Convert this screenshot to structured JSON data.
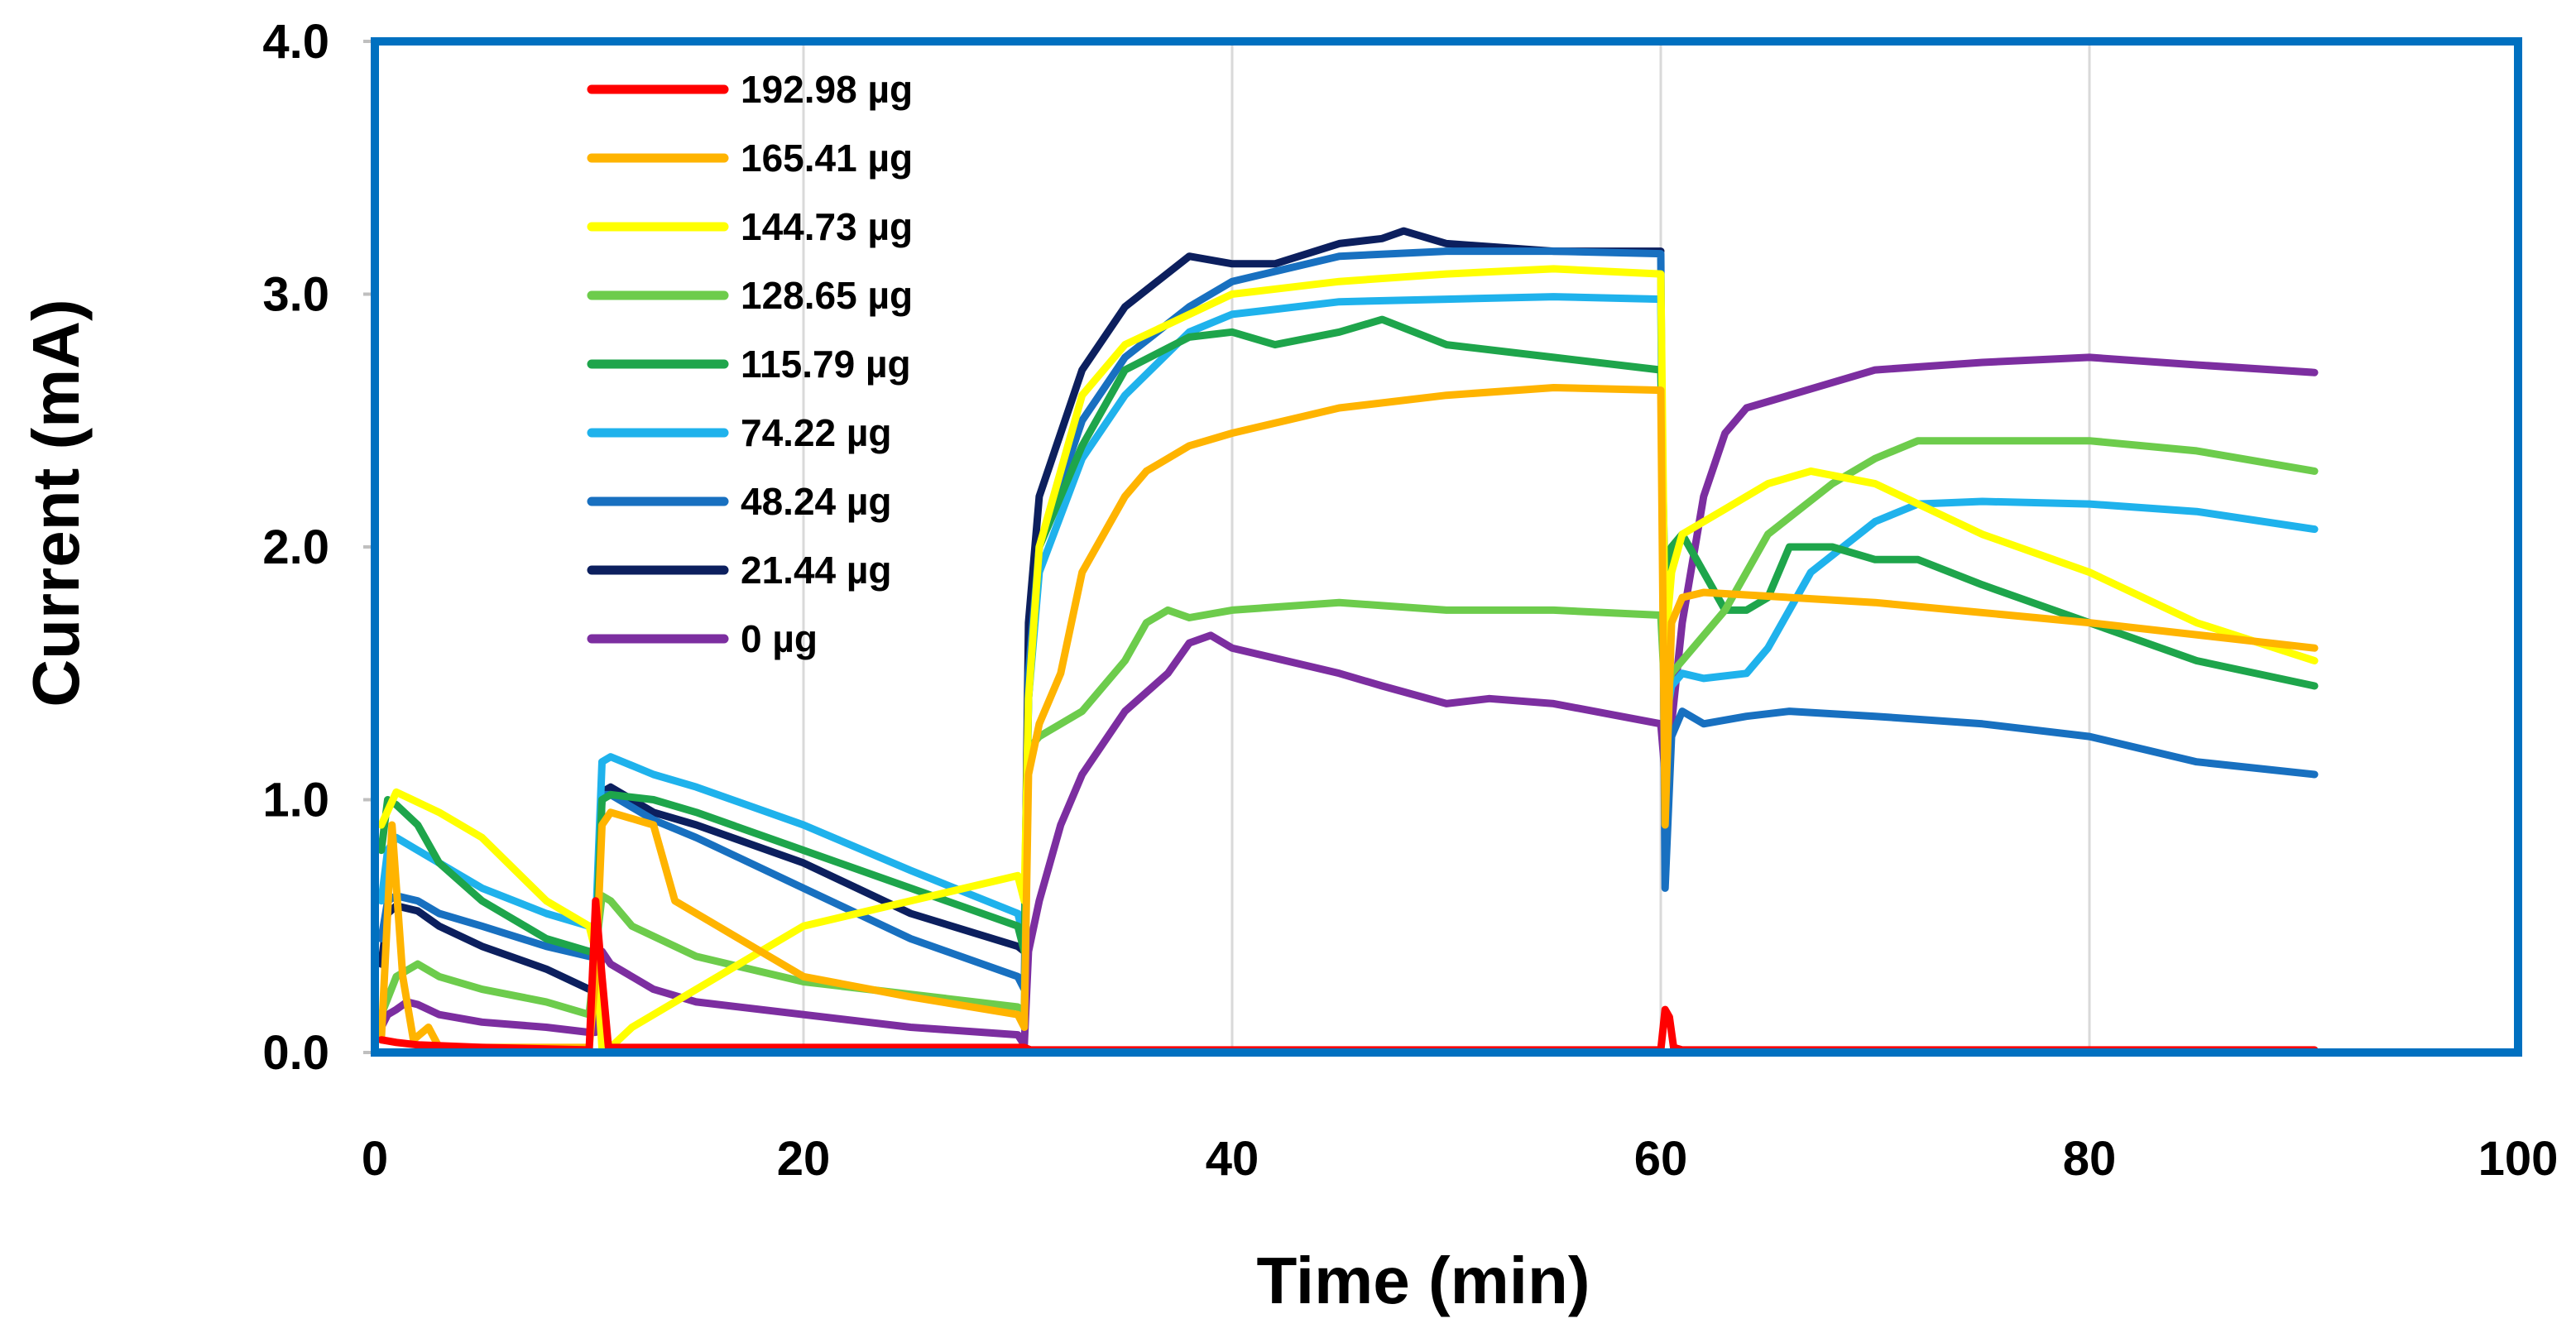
{
  "chart_data": {
    "type": "line",
    "title": "",
    "xlabel": "Time (min)",
    "ylabel": "Current (mA)",
    "xlim": [
      0,
      100
    ],
    "ylim": [
      0,
      4
    ],
    "xticks": [
      "0",
      "20",
      "40",
      "60",
      "80",
      "100"
    ],
    "yticks": [
      "0.0",
      "1.0",
      "2.0",
      "3.0",
      "4.0"
    ],
    "grid": "vertical",
    "legend_position": "top-left",
    "series": [
      {
        "name": "192.98 µg",
        "color": "#ff0000",
        "x": [
          0.3,
          1,
          2,
          5,
          10,
          10.3,
          10.6,
          10.9,
          15,
          20,
          25,
          30,
          30.3,
          30.6,
          31,
          40,
          50,
          60,
          60.2,
          60.4,
          60.6,
          61,
          70,
          80,
          90.5
        ],
        "y": [
          0.05,
          0.04,
          0.03,
          0.02,
          0.01,
          0.6,
          0.3,
          0.02,
          0.02,
          0.02,
          0.02,
          0.02,
          0.02,
          0.01,
          0.01,
          0.01,
          0.01,
          0.01,
          0.17,
          0.14,
          0.02,
          0.01,
          0.01,
          0.01,
          0.01
        ]
      },
      {
        "name": "165.41 µg",
        "color": "#ffb400",
        "x": [
          0.3,
          0.8,
          1.3,
          1.8,
          2.5,
          3,
          5,
          10,
          10.3,
          10.6,
          11,
          13,
          14,
          16,
          20,
          25,
          30,
          30.3,
          30.5,
          31,
          32,
          33,
          35,
          36,
          38,
          40,
          45,
          50,
          55,
          60,
          60.2,
          60.5,
          61,
          62,
          64,
          70,
          80,
          90.5
        ],
        "y": [
          0.05,
          0.9,
          0.3,
          0.05,
          0.1,
          0.02,
          0.02,
          0.02,
          0.3,
          0.9,
          0.95,
          0.9,
          0.6,
          0.5,
          0.3,
          0.22,
          0.15,
          0.1,
          1.1,
          1.3,
          1.5,
          1.9,
          2.2,
          2.3,
          2.4,
          2.45,
          2.55,
          2.6,
          2.63,
          2.62,
          0.9,
          1.7,
          1.8,
          1.82,
          1.81,
          1.78,
          1.7,
          1.6
        ]
      },
      {
        "name": "144.73 µg",
        "color": "#ffff00",
        "x": [
          0.3,
          1,
          3,
          5,
          8,
          10,
          10.3,
          10.6,
          11,
          12,
          15,
          18,
          20,
          25,
          30,
          30.3,
          30.5,
          31,
          33,
          35,
          40,
          45,
          50,
          55,
          60,
          60.2,
          60.5,
          61,
          63,
          65,
          67,
          70,
          75,
          80,
          85,
          90.5
        ],
        "y": [
          0.9,
          1.03,
          0.95,
          0.85,
          0.6,
          0.5,
          0.4,
          0.02,
          0.02,
          0.1,
          0.25,
          0.4,
          0.5,
          0.6,
          0.7,
          0.6,
          1.4,
          2.0,
          2.6,
          2.8,
          3.0,
          3.05,
          3.08,
          3.1,
          3.08,
          1.6,
          1.9,
          2.05,
          2.15,
          2.25,
          2.3,
          2.25,
          2.05,
          1.9,
          1.7,
          1.55
        ]
      },
      {
        "name": "128.65 µg",
        "color": "#6dcc4c",
        "x": [
          0.3,
          1,
          2,
          3,
          5,
          8,
          10,
          10.3,
          10.6,
          11,
          12,
          15,
          20,
          25,
          30,
          30.3,
          30.5,
          31,
          33,
          35,
          36,
          37,
          38,
          40,
          45,
          50,
          55,
          60,
          60.2,
          60.5,
          61,
          63,
          65,
          68,
          70,
          72,
          75,
          80,
          85,
          90.5
        ],
        "y": [
          0.15,
          0.3,
          0.35,
          0.3,
          0.25,
          0.2,
          0.15,
          0.4,
          0.62,
          0.6,
          0.5,
          0.38,
          0.28,
          0.23,
          0.18,
          0.15,
          1.2,
          1.25,
          1.35,
          1.55,
          1.7,
          1.75,
          1.72,
          1.75,
          1.78,
          1.75,
          1.75,
          1.73,
          1.4,
          1.5,
          1.55,
          1.75,
          2.05,
          2.25,
          2.35,
          2.42,
          2.42,
          2.42,
          2.38,
          2.3
        ]
      },
      {
        "name": "115.79 µg",
        "color": "#1ea54b",
        "x": [
          0.3,
          0.6,
          1,
          2,
          3,
          5,
          8,
          10,
          10.3,
          10.6,
          11,
          13,
          15,
          20,
          25,
          30,
          30.3,
          30.5,
          31,
          33,
          35,
          38,
          40,
          42,
          45,
          47,
          50,
          55,
          60,
          60.2,
          60.5,
          61,
          62,
          63,
          64,
          65,
          66,
          68,
          70,
          72,
          75,
          80,
          85,
          90.5
        ],
        "y": [
          0.8,
          1.0,
          0.98,
          0.9,
          0.75,
          0.6,
          0.45,
          0.4,
          0.4,
          1.0,
          1.02,
          1.0,
          0.95,
          0.8,
          0.65,
          0.5,
          0.4,
          1.4,
          2.0,
          2.4,
          2.7,
          2.83,
          2.85,
          2.8,
          2.85,
          2.9,
          2.8,
          2.75,
          2.7,
          1.8,
          2.0,
          2.05,
          1.9,
          1.75,
          1.75,
          1.8,
          2.0,
          2.0,
          1.95,
          1.95,
          1.85,
          1.7,
          1.55,
          1.45
        ]
      },
      {
        "name": "74.22 µg",
        "color": "#1fb2ec",
        "x": [
          0.3,
          0.6,
          1,
          2,
          3,
          5,
          8,
          10,
          10.3,
          10.6,
          11,
          13,
          15,
          20,
          25,
          30,
          30.3,
          30.5,
          31,
          33,
          35,
          38,
          40,
          45,
          50,
          55,
          60,
          60.2,
          60.5,
          61,
          62,
          64,
          65,
          67,
          70,
          72,
          75,
          80,
          85,
          90.5
        ],
        "y": [
          0.6,
          0.8,
          0.85,
          0.8,
          0.75,
          0.65,
          0.55,
          0.5,
          0.5,
          1.15,
          1.17,
          1.1,
          1.05,
          0.9,
          0.72,
          0.55,
          0.45,
          1.4,
          1.9,
          2.35,
          2.6,
          2.85,
          2.92,
          2.97,
          2.98,
          2.99,
          2.98,
          1.3,
          1.45,
          1.5,
          1.48,
          1.5,
          1.6,
          1.9,
          2.1,
          2.17,
          2.18,
          2.17,
          2.14,
          2.07
        ]
      },
      {
        "name": "48.24 µg",
        "color": "#1870c0",
        "x": [
          0.3,
          0.6,
          1,
          2,
          3,
          5,
          8,
          10,
          10.3,
          10.6,
          11,
          13,
          15,
          20,
          25,
          30,
          30.3,
          30.5,
          31,
          33,
          35,
          38,
          40,
          45,
          50,
          55,
          60,
          60.2,
          60.5,
          61,
          62,
          64,
          66,
          70,
          75,
          80,
          85,
          90.5
        ],
        "y": [
          0.45,
          0.6,
          0.62,
          0.6,
          0.55,
          0.5,
          0.42,
          0.38,
          0.38,
          1.02,
          1.02,
          0.92,
          0.85,
          0.65,
          0.45,
          0.3,
          0.25,
          1.5,
          2.0,
          2.5,
          2.75,
          2.95,
          3.05,
          3.15,
          3.17,
          3.17,
          3.16,
          0.65,
          1.25,
          1.35,
          1.3,
          1.33,
          1.35,
          1.33,
          1.3,
          1.25,
          1.15,
          1.1
        ]
      },
      {
        "name": "21.44 µg",
        "color": "#0c1f5e",
        "x": [
          0.3,
          0.6,
          1,
          2,
          3,
          5,
          8,
          10,
          10.3,
          10.6,
          11,
          13,
          15,
          20,
          25,
          30,
          30.3,
          30.5,
          31,
          33,
          35,
          38,
          40,
          42,
          45,
          47,
          48,
          50,
          55,
          60
        ],
        "y": [
          0.35,
          0.55,
          0.58,
          0.56,
          0.5,
          0.42,
          0.33,
          0.25,
          0.25,
          1.03,
          1.05,
          0.95,
          0.9,
          0.75,
          0.55,
          0.42,
          0.4,
          1.7,
          2.2,
          2.7,
          2.95,
          3.15,
          3.12,
          3.12,
          3.2,
          3.22,
          3.25,
          3.2,
          3.17,
          3.17
        ]
      },
      {
        "name": "0 µg",
        "color": "#7c2ea0",
        "x": [
          0.3,
          0.6,
          1,
          1.5,
          2,
          3,
          5,
          8,
          10,
          10.3,
          10.6,
          11,
          13,
          15,
          20,
          25,
          30,
          30.3,
          30.5,
          31,
          32,
          33,
          35,
          37,
          38,
          39,
          40,
          45,
          47,
          50,
          52,
          55,
          60,
          60.2,
          60.5,
          61,
          62,
          63,
          64,
          66,
          70,
          75,
          80,
          85,
          90.5
        ],
        "y": [
          0.1,
          0.15,
          0.17,
          0.2,
          0.19,
          0.15,
          0.12,
          0.1,
          0.08,
          0.08,
          0.4,
          0.35,
          0.25,
          0.2,
          0.15,
          0.1,
          0.07,
          0.03,
          0.4,
          0.6,
          0.9,
          1.1,
          1.35,
          1.5,
          1.62,
          1.65,
          1.6,
          1.5,
          1.45,
          1.38,
          1.4,
          1.38,
          1.3,
          1.1,
          1.3,
          1.7,
          2.2,
          2.45,
          2.55,
          2.6,
          2.7,
          2.73,
          2.75,
          2.72,
          2.69
        ]
      }
    ]
  }
}
